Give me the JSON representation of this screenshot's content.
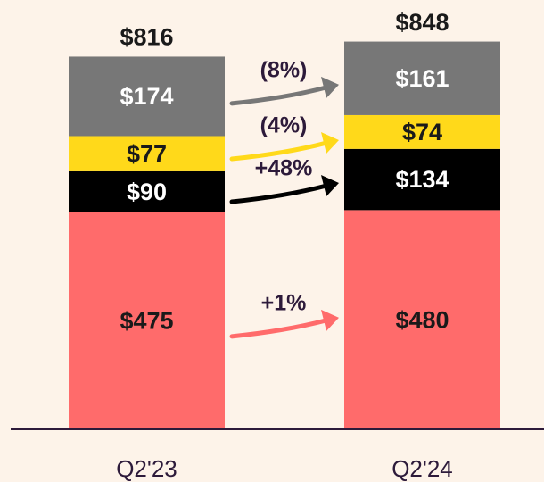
{
  "chart_data": {
    "type": "stacked_bar",
    "categories": [
      "Q2'23",
      "Q2'24"
    ],
    "ylim": [
      0,
      940
    ],
    "series": [
      {
        "color": "#ff6b6b",
        "label_color": "#1a1a1a",
        "values": [
          475,
          480
        ],
        "value_labels": [
          "$475",
          "$480"
        ],
        "change": "+1%"
      },
      {
        "color": "#000000",
        "label_color": "#ffffff",
        "values": [
          90,
          134
        ],
        "value_labels": [
          "$90",
          "$134"
        ],
        "change": "+48%"
      },
      {
        "color": "#ffd91a",
        "label_color": "#1a1a1a",
        "values": [
          77,
          74
        ],
        "value_labels": [
          "$77",
          "$74"
        ],
        "change": "(4%)"
      },
      {
        "color": "#777777",
        "label_color": "#ffffff",
        "values": [
          174,
          161
        ],
        "value_labels": [
          "$174",
          "$161"
        ],
        "change": "(8%)"
      }
    ],
    "totals": [
      816,
      848
    ],
    "total_labels": [
      "$816",
      "$848"
    ]
  }
}
